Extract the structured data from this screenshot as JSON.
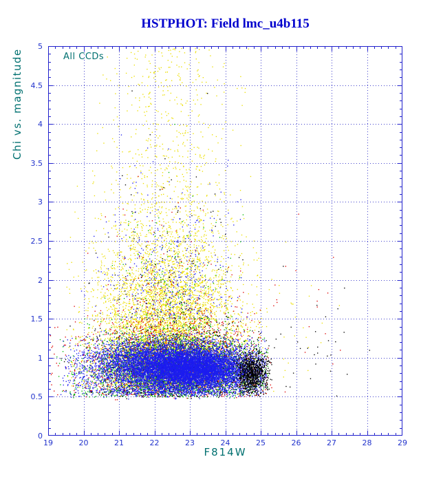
{
  "page": {
    "title": "HSTPHOT: Field lmc_u4b115"
  },
  "chart_data": {
    "type": "scatter",
    "title": "HSTPHOT: Field lmc_u4b115",
    "xlabel": "F814W",
    "ylabel": "Chi vs. magnitude",
    "annotation": "All CCDs",
    "xlim": [
      19,
      29
    ],
    "ylim": [
      0,
      5
    ],
    "x_tick_values": [
      19,
      20,
      21,
      22,
      23,
      24,
      25,
      26,
      27,
      28,
      29
    ],
    "x_tick_labels": [
      "19",
      "20",
      "21",
      "22",
      "23",
      "24",
      "25",
      "26",
      "27",
      "28",
      "29"
    ],
    "y_tick_values": [
      0,
      0.5,
      1,
      1.5,
      2,
      2.5,
      3,
      3.5,
      4,
      4.5,
      5
    ],
    "y_tick_labels": [
      "0",
      "0.5",
      "1",
      "1.5",
      "2",
      "2.5",
      "3",
      "3.5",
      "4",
      "4.5",
      "5"
    ],
    "grid": true,
    "legend": false,
    "colors": {
      "title": "#0000cd",
      "frame": "#2020cc",
      "grid": "#4040cc",
      "tick_label": "#2233cc",
      "axis_label": "#007070"
    },
    "point_size": 1.35,
    "random_seed": 1234,
    "series": [
      {
        "name": "ccd-yellow",
        "color": "#ecdf00",
        "clusters": [
          {
            "count": 6000,
            "x": {
              "mean": 22.35,
              "sd": 1.05,
              "min": 19.5,
              "max": 25.2
            },
            "y": {
              "mean": 0.62,
              "sd": 0.95,
              "min": 0.5,
              "max": 4.95,
              "half": true
            }
          },
          {
            "count": 750,
            "x": {
              "mean": 22.4,
              "sd": 0.9,
              "min": 20.2,
              "max": 24.8
            },
            "y": {
              "uniform": true,
              "min": 1.5,
              "max": 4.98
            }
          },
          {
            "count": 25,
            "x": {
              "mean": 25.7,
              "sd": 0.6,
              "min": 25.2,
              "max": 27.3
            },
            "y": {
              "mean": 1.1,
              "sd": 0.7,
              "min": 0.55,
              "max": 3.0
            }
          }
        ]
      },
      {
        "name": "ccd-green",
        "color": "#00b800",
        "clusters": [
          {
            "count": 3200,
            "x": {
              "mean": 22.6,
              "sd": 1.25,
              "min": 19.15,
              "max": 25.2
            },
            "y": {
              "mean": 0.88,
              "sd": 0.22,
              "min": 0.5,
              "max": 1.9
            }
          },
          {
            "count": 180,
            "x": {
              "mean": 22.5,
              "sd": 1.0,
              "min": 19.5,
              "max": 25.0
            },
            "y": {
              "mean": 1.2,
              "sd": 0.8,
              "min": 1.2,
              "max": 4.2,
              "half": true
            }
          },
          {
            "count": 180,
            "x": {
              "mean": 22.5,
              "sd": 1.5,
              "min": 19.2,
              "max": 25.0
            },
            "y": {
              "mean": 0.57,
              "sd": 0.04,
              "min": 0.46,
              "max": 0.66
            }
          }
        ]
      },
      {
        "name": "ccd-red",
        "color": "#dd0000",
        "clusters": [
          {
            "count": 1500,
            "x": {
              "mean": 22.5,
              "sd": 1.4,
              "min": 19.05,
              "max": 25.3
            },
            "y": {
              "mean": 0.95,
              "sd": 0.3,
              "min": 0.5,
              "max": 2.2
            }
          },
          {
            "count": 150,
            "x": {
              "mean": 22.4,
              "sd": 1.1,
              "min": 19.3,
              "max": 25.0
            },
            "y": {
              "mean": 1.3,
              "sd": 0.75,
              "min": 1.3,
              "max": 3.6,
              "half": true
            }
          },
          {
            "count": 90,
            "x": {
              "mean": 22.5,
              "sd": 1.5,
              "min": 19.1,
              "max": 25.1
            },
            "y": {
              "mean": 0.57,
              "sd": 0.04,
              "min": 0.46,
              "max": 0.66
            }
          },
          {
            "count": 18,
            "x": {
              "mean": 26.0,
              "sd": 0.9,
              "min": 25.3,
              "max": 27.9
            },
            "y": {
              "mean": 1.3,
              "sd": 0.9,
              "min": 0.5,
              "max": 4.6
            }
          }
        ]
      },
      {
        "name": "ccd-black-scatter",
        "color": "#000000",
        "clusters": [
          {
            "count": 600,
            "x": {
              "mean": 22.8,
              "sd": 1.3,
              "min": 19.2,
              "max": 25.2
            },
            "y": {
              "mean": 0.95,
              "sd": 0.3,
              "min": 0.5,
              "max": 2.0
            }
          },
          {
            "count": 110,
            "x": {
              "mean": 22.4,
              "sd": 1.0,
              "min": 19.6,
              "max": 25.0
            },
            "y": {
              "mean": 1.2,
              "sd": 1.1,
              "min": 1.2,
              "max": 4.6,
              "half": true
            }
          },
          {
            "count": 90,
            "x": {
              "mean": 22.6,
              "sd": 1.5,
              "min": 19.2,
              "max": 25.2
            },
            "y": {
              "mean": 0.57,
              "sd": 0.04,
              "min": 0.45,
              "max": 0.66
            }
          }
        ]
      },
      {
        "name": "ccd-blue",
        "color": "#1c1cf0",
        "clusters": [
          {
            "count": 6200,
            "x": {
              "mean": 22.3,
              "sd": 1.1,
              "min": 19.4,
              "max": 25.15
            },
            "y": {
              "mean": 0.9,
              "sd": 0.17,
              "min": 0.52,
              "max": 1.6
            }
          },
          {
            "count": 5200,
            "x": {
              "mean": 23.2,
              "sd": 0.85,
              "min": 19.8,
              "max": 25.15
            },
            "y": {
              "mean": 0.85,
              "sd": 0.13,
              "min": 0.52,
              "max": 1.45
            }
          },
          {
            "count": 380,
            "x": {
              "mean": 22.4,
              "sd": 0.95,
              "min": 19.8,
              "max": 24.9
            },
            "y": {
              "mean": 1.5,
              "sd": 0.8,
              "min": 1.5,
              "max": 4.25,
              "half": true
            }
          },
          {
            "count": 350,
            "x": {
              "mean": 22.5,
              "sd": 1.5,
              "min": 19.3,
              "max": 25.1
            },
            "y": {
              "mean": 0.57,
              "sd": 0.035,
              "min": 0.47,
              "max": 0.65
            }
          }
        ]
      },
      {
        "name": "ccd-black-edge",
        "color": "#000000",
        "clusters": [
          {
            "count": 950,
            "x": {
              "mean": 24.75,
              "sd": 0.22,
              "min": 24.15,
              "max": 25.3
            },
            "y": {
              "mean": 0.8,
              "sd": 0.13,
              "min": 0.52,
              "max": 1.2
            }
          },
          {
            "count": 30,
            "x": {
              "mean": 26.3,
              "sd": 0.9,
              "min": 25.35,
              "max": 28.4
            },
            "y": {
              "mean": 1.0,
              "sd": 0.5,
              "min": 0.45,
              "max": 2.3
            }
          }
        ]
      }
    ]
  }
}
